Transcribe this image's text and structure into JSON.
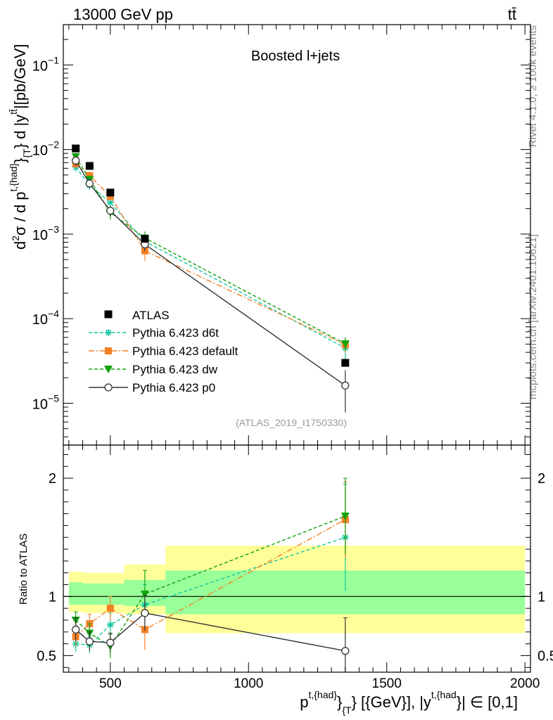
{
  "header": {
    "left": "13000 GeV pp",
    "right": "tt̄"
  },
  "side_labels": {
    "rivet": "Rivet 4.1.0, ≥ 100k events",
    "mcplots": "mcplots.cern.ch [arXiv:2401.10621]"
  },
  "chart_data": {
    "type": "scatter",
    "title": "Boosted l+jets",
    "analysis_id": "(ATLAS_2019_I1750330)",
    "xlabel": "p^{t,{had}}_{T} [{GeV}], |y^{t,{had}}| ∈ [0,1]",
    "xlabel_main": "p",
    "xlabel_sup1": "t,{had}",
    "xlabel_mid": "}",
    "xlabel_sub1": "{T",
    "xlabel_rest": "} [{GeV}], |y",
    "xlabel_sup2": "t,{had",
    "xlabel_tail": "}| ∈ [0,1]",
    "ylabel": "d²σ / d p^{t,{had}}_{T} d |y^{tt̄}|[pb/GeV]",
    "ylabel_parts": {
      "a": "d",
      "a_sup": "2",
      "b": "σ  /  d p",
      "b_sup": "t,{had}",
      "c": "}",
      "c_sub": "{T",
      "d": "} d |y",
      "d_sup": "tt̄",
      "e": "|[pb/GeV]"
    },
    "ratio_ylabel": "Ratio to ATLAS",
    "xlim": [
      330,
      2020
    ],
    "ylim": [
      3.2e-06,
      0.3
    ],
    "ratio_ylim": [
      0.36,
      2.28
    ],
    "x_ticks": [
      500,
      1000,
      1500,
      2000
    ],
    "x_tick_labels": [
      "500",
      "1000",
      "1500",
      "2000"
    ],
    "y_ticks": [
      1e-05,
      0.0001,
      0.001,
      0.01,
      0.1
    ],
    "y_tick_labels_base": [
      "10",
      "10",
      "10",
      "10",
      "10"
    ],
    "y_tick_labels_exp": [
      "−5",
      "−4",
      "−3",
      "−2",
      "−1"
    ],
    "ratio_ticks": [
      0.5,
      1,
      2
    ],
    "ratio_tick_labels": [
      "0.5",
      "1",
      "2"
    ],
    "bins": [
      {
        "x": 375,
        "lo": 350,
        "hi": 400
      },
      {
        "x": 425,
        "lo": 400,
        "hi": 450
      },
      {
        "x": 500,
        "lo": 450,
        "hi": 550
      },
      {
        "x": 625,
        "lo": 550,
        "hi": 700
      },
      {
        "x": 1350,
        "lo": 700,
        "hi": 2000
      }
    ],
    "data": {
      "name": "ATLAS",
      "values": [
        0.0103,
        0.0064,
        0.0031,
        0.00088,
        3e-05
      ],
      "band_inner": [
        [
          0.93,
          1.12
        ],
        [
          0.93,
          1.11
        ],
        [
          0.93,
          1.11
        ],
        [
          0.92,
          1.14
        ],
        [
          0.85,
          1.22
        ]
      ],
      "band_outer": [
        [
          0.87,
          1.21
        ],
        [
          0.86,
          1.2
        ],
        [
          0.86,
          1.2
        ],
        [
          0.85,
          1.27
        ],
        [
          0.69,
          1.43
        ]
      ]
    },
    "series": [
      {
        "name": "Pythia 6.423 d6t",
        "color": "#17c8a0",
        "dash": "5,3",
        "marker": "star",
        "ratio": [
          0.6,
          0.59,
          0.76,
          0.93,
          1.5
        ],
        "ratio_err": [
          0.07,
          0.07,
          0.1,
          0.17,
          0.45
        ]
      },
      {
        "name": "Pythia 6.423 default",
        "color": "#f58025",
        "dash": "8,3,2,3",
        "marker": "square",
        "ratio": [
          0.66,
          0.77,
          0.9,
          0.72,
          1.65
        ],
        "ratio_err": [
          0.08,
          0.08,
          0.1,
          0.17,
          0.32
        ]
      },
      {
        "name": "Pythia 6.423 dw",
        "color": "#11a40b",
        "dash": "5,3",
        "marker": "triangle-down",
        "ratio": [
          0.8,
          0.69,
          0.58,
          1.02,
          1.68
        ],
        "ratio_err": [
          0.07,
          0.08,
          0.1,
          0.2,
          0.32
        ]
      },
      {
        "name": "Pythia 6.423 p0",
        "color": "#333333",
        "dash": "",
        "marker": "circle-open",
        "ratio": [
          0.72,
          0.62,
          0.61,
          0.86,
          0.54
        ],
        "ratio_err": [
          0.1,
          0.08,
          0.08,
          0.15,
          0.28
        ]
      }
    ],
    "legend_position": "lower-left"
  }
}
